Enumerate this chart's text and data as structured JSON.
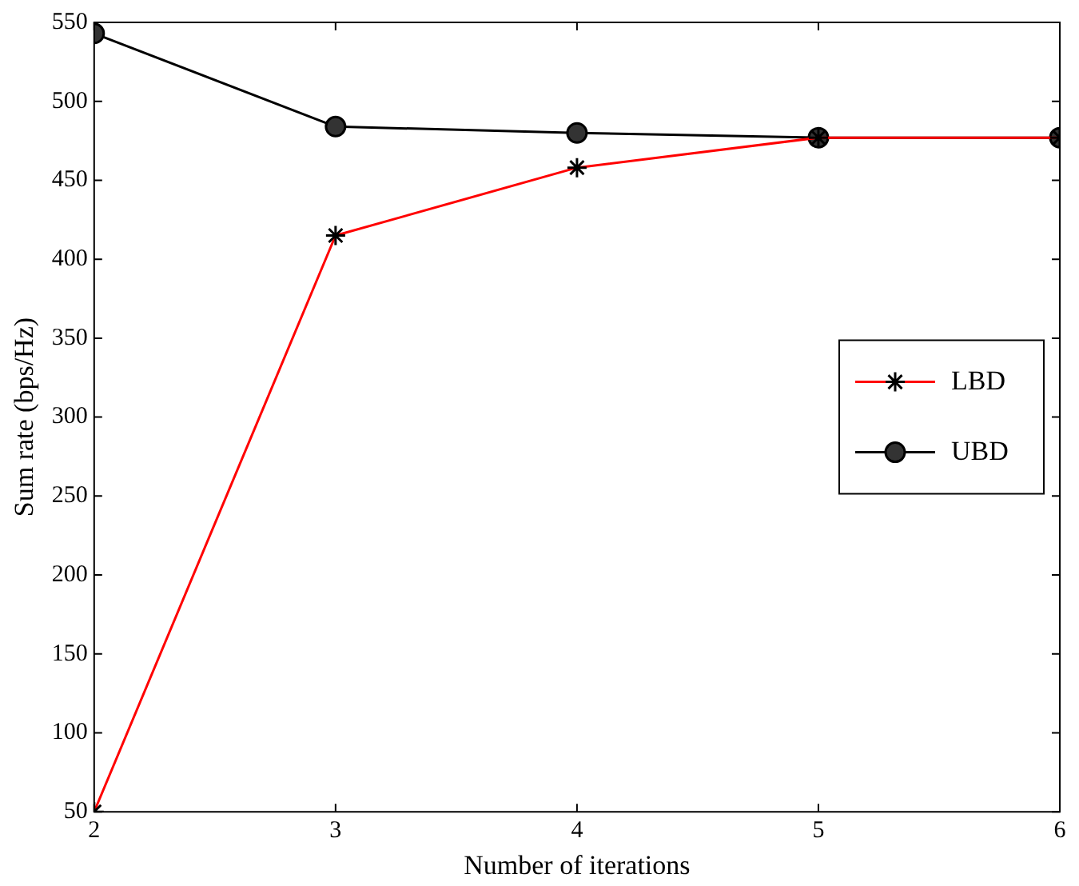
{
  "chart_data": {
    "type": "line",
    "xlabel": "Number of iterations",
    "ylabel": "Sum rate (bps/Hz)",
    "x": [
      2,
      3,
      4,
      5,
      6
    ],
    "series": [
      {
        "name": "LBD",
        "color": "#ff0000",
        "marker": "cross",
        "values": [
          50,
          415,
          458,
          477,
          477
        ]
      },
      {
        "name": "UBD",
        "color": "#000000",
        "marker": "circle",
        "values": [
          543,
          484,
          480,
          477,
          477
        ]
      }
    ],
    "xlim": [
      2,
      6
    ],
    "xticks": [
      2,
      3,
      4,
      5,
      6
    ],
    "ylim": [
      50,
      550
    ],
    "yticks": [
      50,
      100,
      150,
      200,
      250,
      300,
      350,
      400,
      450,
      500,
      550
    ],
    "grid": false,
    "legend": "right",
    "line_style": "solid"
  }
}
